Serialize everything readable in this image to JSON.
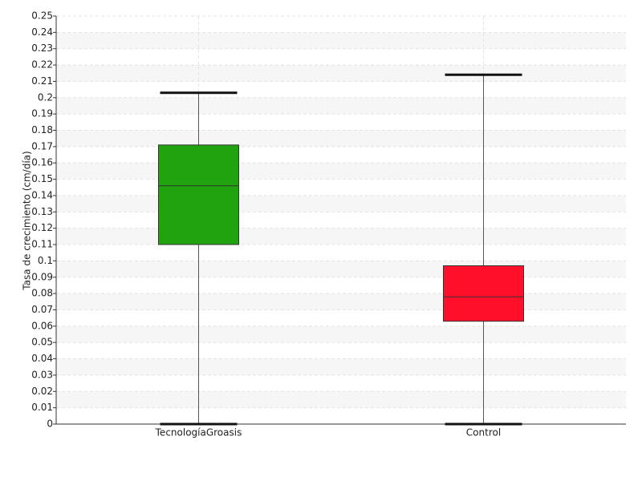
{
  "chart_data": {
    "type": "box",
    "y_label": "Tasa de crecimiento (cm/día)",
    "categories": [
      "TecnologíaGroasis",
      "Control"
    ],
    "boxes": [
      {
        "min": 0,
        "q1": 0.11,
        "median": 0.146,
        "q3": 0.171,
        "max": 0.203,
        "color": "#21a30f"
      },
      {
        "min": 0,
        "q1": 0.063,
        "median": 0.078,
        "q3": 0.097,
        "max": 0.214,
        "color": "#ff0f2a"
      }
    ],
    "ylim": [
      0,
      0.25
    ],
    "yticks": [
      0,
      0.01,
      0.02,
      0.03,
      0.04,
      0.05,
      0.06,
      0.07,
      0.08,
      0.09,
      0.1,
      0.11,
      0.12,
      0.13,
      0.14,
      0.15,
      0.16,
      0.17,
      0.18,
      0.19,
      0.2,
      0.21,
      0.22,
      0.23,
      0.24,
      0.25
    ],
    "grid": true
  }
}
